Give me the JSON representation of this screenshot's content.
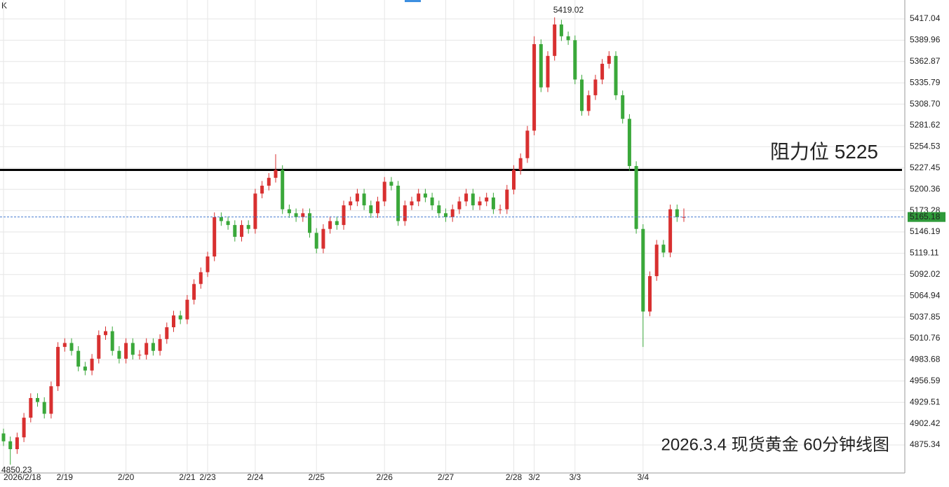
{
  "corner_label": "K",
  "chart_data": {
    "type": "candlestick",
    "title": "2026.3.4 现货黄金 60分钟线图",
    "up_color": "#d83030",
    "down_color": "#3aa83a",
    "ylim": [
      4839.7,
      5441.1
    ],
    "yticks": [
      4875.34,
      4902.42,
      4929.51,
      4956.59,
      4983.68,
      5010.76,
      5037.85,
      5064.94,
      5092.02,
      5119.11,
      5146.19,
      5173.28,
      5200.36,
      5227.45,
      5254.53,
      5281.62,
      {
        "value": 5308.7,
        "label": "5308.70"
      },
      5335.79,
      5362.87,
      5389.96,
      5417.04
    ],
    "grid": true,
    "resistance": {
      "label": "阻力位 5225",
      "value": 5225
    },
    "categories": [
      "2026/2/18",
      null,
      null,
      null,
      null,
      null,
      null,
      null,
      null,
      "2/19",
      null,
      null,
      null,
      null,
      null,
      null,
      null,
      null,
      "2/20",
      null,
      null,
      null,
      null,
      null,
      null,
      null,
      null,
      "2/21",
      null,
      null,
      "2/23",
      null,
      null,
      null,
      null,
      null,
      null,
      "2/24",
      null,
      null,
      null,
      null,
      null,
      null,
      null,
      null,
      "2/25",
      null,
      null,
      null,
      null,
      null,
      null,
      null,
      null,
      null,
      "2/26",
      null,
      null,
      null,
      null,
      null,
      null,
      null,
      null,
      "2/27",
      null,
      null,
      null,
      null,
      null,
      null,
      null,
      null,
      null,
      "2/28",
      null,
      null,
      "3/2",
      null,
      null,
      null,
      null,
      null,
      "3/3",
      null,
      null,
      null,
      null,
      null,
      null,
      null,
      null,
      null,
      "3/4",
      null,
      null,
      null,
      null,
      null,
      null
    ],
    "open": [
      4890,
      4880,
      4870,
      4885,
      4910,
      4935,
      4930,
      4915,
      4950,
      5000,
      5005,
      4995,
      4975,
      4970,
      4985,
      5015,
      5020,
      4995,
      4985,
      5005,
      4990,
      4990,
      5005,
      4995,
      5010,
      5025,
      5040,
      5035,
      5060,
      5080,
      5095,
      5115,
      5165,
      5160,
      5155,
      5140,
      5155,
      5150,
      5195,
      5205,
      5215,
      5225,
      5175,
      5170,
      5165,
      5170,
      5145,
      5125,
      5150,
      5160,
      5155,
      5180,
      5185,
      5195,
      5180,
      5170,
      5185,
      5210,
      5205,
      5160,
      5180,
      5185,
      5195,
      5190,
      5180,
      5170,
      5165,
      5175,
      5185,
      5195,
      5180,
      5185,
      5190,
      5175,
      5175,
      5200,
      5225,
      5240,
      5275,
      5385,
      5330,
      5370,
      5410,
      5395,
      5390,
      5340,
      5300,
      5320,
      5340,
      5360,
      5370,
      5320,
      5290,
      5230,
      5150,
      5045,
      5090,
      5130,
      5120,
      5175,
      5165
    ],
    "high": [
      4896,
      4886,
      4891,
      4916,
      4941,
      4941,
      4936,
      4956,
      5006,
      5011,
      5011,
      5001,
      4981,
      4991,
      5021,
      5026,
      5026,
      5001,
      5011,
      5011,
      4996,
      5011,
      5011,
      5016,
      5031,
      5046,
      5046,
      5066,
      5086,
      5101,
      5121,
      5171,
      5171,
      5166,
      5161,
      5161,
      5161,
      5201,
      5211,
      5221,
      5245,
      5231,
      5181,
      5176,
      5176,
      5176,
      5151,
      5156,
      5166,
      5166,
      5186,
      5191,
      5201,
      5201,
      5186,
      5191,
      5216,
      5216,
      5211,
      5186,
      5191,
      5201,
      5201,
      5196,
      5186,
      5176,
      5181,
      5191,
      5201,
      5201,
      5191,
      5196,
      5196,
      5181,
      5206,
      5231,
      5246,
      5281,
      5395,
      5391,
      5376,
      5419.02,
      5416,
      5401,
      5396,
      5346,
      5326,
      5346,
      5366,
      5376,
      5376,
      5326,
      5296,
      5236,
      5156,
      5096,
      5136,
      5136,
      5181,
      5181,
      5176
    ],
    "low": [
      4874,
      4850.23,
      4864,
      4879,
      4904,
      4924,
      4909,
      4909,
      4944,
      4994,
      4989,
      4969,
      4964,
      4964,
      4979,
      5009,
      4989,
      4979,
      4979,
      4984,
      4984,
      4984,
      4989,
      4989,
      5004,
      5019,
      5029,
      5029,
      5054,
      5074,
      5089,
      5109,
      5154,
      5149,
      5134,
      5134,
      5144,
      5144,
      5189,
      5199,
      5209,
      5169,
      5164,
      5159,
      5159,
      5139,
      5119,
      5119,
      5144,
      5149,
      5149,
      5174,
      5179,
      5174,
      5164,
      5164,
      5179,
      5199,
      5154,
      5154,
      5174,
      5179,
      5184,
      5174,
      5164,
      5159,
      5159,
      5169,
      5179,
      5174,
      5174,
      5179,
      5169,
      5169,
      5169,
      5194,
      5219,
      5234,
      5269,
      5324,
      5324,
      5364,
      5389,
      5384,
      5334,
      5294,
      5294,
      5314,
      5334,
      5354,
      5314,
      5284,
      5224,
      5144,
      5000,
      5039,
      5084,
      5114,
      5114,
      5159,
      5159
    ],
    "close": [
      4880,
      4870,
      4885,
      4910,
      4935,
      4930,
      4915,
      4950,
      5000,
      5005,
      4995,
      4975,
      4970,
      4985,
      5015,
      5020,
      4995,
      4985,
      5005,
      4990,
      4990,
      5005,
      4995,
      5010,
      5025,
      5040,
      5035,
      5060,
      5080,
      5095,
      5115,
      5165,
      5160,
      5155,
      5140,
      5155,
      5150,
      5195,
      5205,
      5215,
      5225,
      5175,
      5170,
      5165,
      5170,
      5145,
      5125,
      5150,
      5160,
      5155,
      5180,
      5185,
      5195,
      5180,
      5170,
      5185,
      5210,
      5205,
      5160,
      5180,
      5185,
      5195,
      5190,
      5180,
      5170,
      5165,
      5175,
      5185,
      5195,
      5180,
      5185,
      5190,
      5175,
      5175,
      5200,
      5225,
      5240,
      5275,
      5385,
      5330,
      5370,
      5410,
      5395,
      5390,
      5340,
      5300,
      5320,
      5340,
      5360,
      5370,
      5320,
      5290,
      5230,
      5150,
      5045,
      5090,
      5130,
      5120,
      5175,
      5165,
      5165.18
    ]
  }
}
